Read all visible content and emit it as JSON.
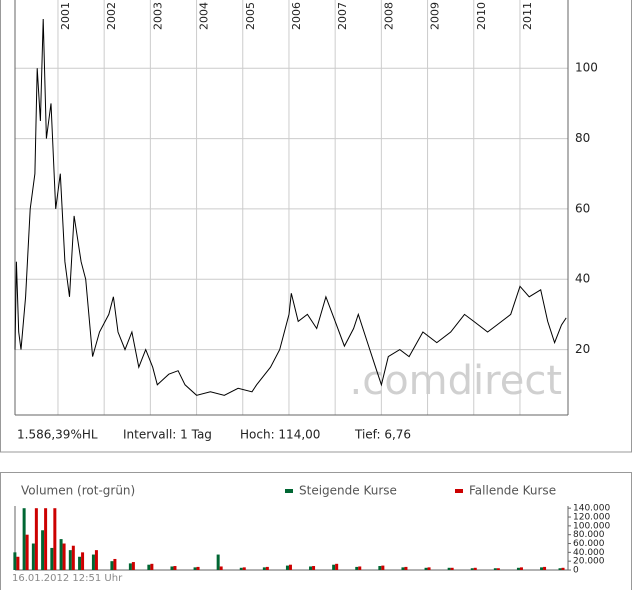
{
  "chart_data": [
    {
      "type": "line",
      "x": [
        2000.07,
        2000.1,
        2000.15,
        2000.2,
        2000.3,
        2000.4,
        2000.5,
        2000.55,
        2000.62,
        2000.68,
        2000.75,
        2000.85,
        2000.95,
        2001.05,
        2001.15,
        2001.25,
        2001.35,
        2001.5,
        2001.6,
        2001.75,
        2001.9,
        2002.1,
        2002.2,
        2002.3,
        2002.45,
        2002.6,
        2002.75,
        2002.9,
        2003.05,
        2003.15,
        2003.4,
        2003.6,
        2003.75,
        2004.0,
        2004.3,
        2004.6,
        2004.9,
        2005.2,
        2005.3,
        2005.6,
        2005.8,
        2006.0,
        2006.05,
        2006.2,
        2006.4,
        2006.6,
        2006.8,
        2007.0,
        2007.2,
        2007.4,
        2007.5,
        2007.7,
        2007.9,
        2008.0,
        2008.15,
        2008.4,
        2008.6,
        2008.9,
        2009.2,
        2009.5,
        2009.8,
        2010.0,
        2010.3,
        2010.5,
        2010.8,
        2011.0,
        2011.2,
        2011.45,
        2011.6,
        2011.75,
        2011.9,
        2012.0
      ],
      "values": [
        20,
        45,
        25,
        20,
        35,
        60,
        70,
        100,
        85,
        114,
        80,
        90,
        60,
        70,
        45,
        35,
        58,
        45,
        40,
        18,
        25,
        30,
        35,
        25,
        20,
        25,
        15,
        20,
        15,
        10,
        13,
        14,
        10,
        7,
        8,
        7,
        9,
        8,
        10,
        15,
        20,
        30,
        36,
        28,
        30,
        26,
        35,
        28,
        21,
        26,
        30,
        22,
        14,
        10,
        18,
        20,
        18,
        25,
        22,
        25,
        30,
        28,
        25,
        27,
        30,
        38,
        35,
        37,
        28,
        22,
        27,
        29
      ],
      "color": "#000000",
      "xlim": [
        2000.07,
        2012.04
      ],
      "xticks": [
        2001,
        2002,
        2003,
        2004,
        2005,
        2006,
        2007,
        2008,
        2009,
        2010,
        2011
      ],
      "ylim": [
        1.4,
        119.4
      ],
      "yticks": [
        20,
        40,
        60,
        80,
        100
      ],
      "grid": true,
      "watermark": ".comdirect",
      "stats": [
        "1.586,39%HL",
        "Intervall: 1 Tag",
        "Hoch: 114,00",
        "Tief: 6,76"
      ]
    },
    {
      "type": "bar",
      "title": "Volumen (rot-grün)",
      "x": [
        2000.1,
        2000.3,
        2000.5,
        2000.7,
        2000.9,
        2001.1,
        2001.3,
        2001.5,
        2001.8,
        2002.2,
        2002.6,
        2003.0,
        2003.5,
        2004.0,
        2004.5,
        2005.0,
        2005.5,
        2006.0,
        2006.5,
        2007.0,
        2007.5,
        2008.0,
        2008.5,
        2009.0,
        2009.5,
        2010.0,
        2010.5,
        2011.0,
        2011.5,
        2011.9
      ],
      "series": [
        {
          "name": "Steigende Kurse",
          "color": "#006633",
          "values": [
            40000,
            140000,
            60000,
            90000,
            50000,
            70000,
            45000,
            30000,
            35000,
            20000,
            15000,
            12000,
            8000,
            6000,
            35000,
            5000,
            6000,
            10000,
            8000,
            12000,
            7000,
            9000,
            6000,
            5000,
            5000,
            4000,
            4000,
            5000,
            6000,
            4000
          ]
        },
        {
          "name": "Fallende Kurse",
          "color": "#cc0000",
          "values": [
            30000,
            80000,
            140000,
            140000,
            140000,
            60000,
            55000,
            40000,
            45000,
            25000,
            18000,
            14000,
            9000,
            7000,
            8000,
            6000,
            7000,
            12000,
            9000,
            14000,
            8000,
            10000,
            7000,
            6000,
            5000,
            5000,
            4000,
            6000,
            7000,
            5000
          ]
        }
      ],
      "xlim": [
        2000.07,
        2012.04
      ],
      "ylim": [
        0,
        145000
      ],
      "yticks": [
        0,
        {
          "value": 20000,
          "label": "20.000"
        },
        {
          "value": 40000,
          "label": "40.000"
        },
        {
          "value": 60000,
          "label": "60.000"
        },
        {
          "value": 80000,
          "label": "80.000"
        },
        {
          "value": 100000,
          "label": "100.000"
        },
        {
          "value": 120000,
          "label": "120.000"
        },
        {
          "value": 140000,
          "label": "140.000"
        }
      ],
      "timestamp": "16.01.2012 12:51 Uhr"
    }
  ]
}
